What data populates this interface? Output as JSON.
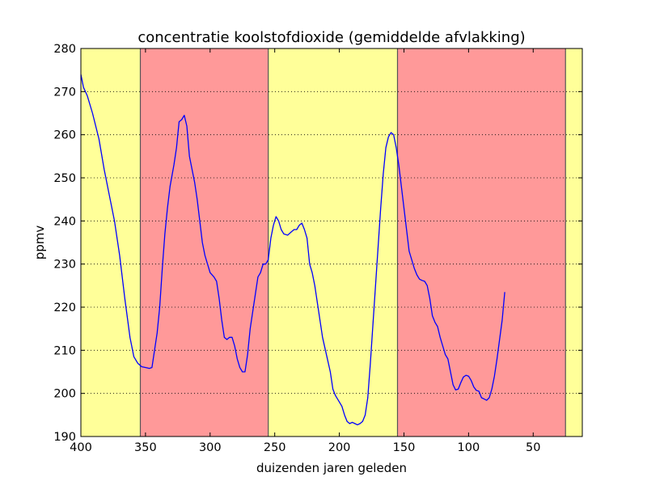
{
  "chart_data": {
    "type": "line",
    "title": "concentratie koolstofdioxide (gemiddelde afvlakking)",
    "xlabel": "duizenden jaren geleden",
    "ylabel": "ppmv",
    "xlim": [
      400,
      12
    ],
    "ylim": [
      190,
      280
    ],
    "x_reversed": true,
    "xticks": [
      400,
      350,
      300,
      250,
      200,
      150,
      100,
      50
    ],
    "yticks": [
      190,
      200,
      210,
      220,
      230,
      240,
      250,
      260,
      270,
      280
    ],
    "grid": "horizontal dotted",
    "colors": {
      "glacial": "#ff9999",
      "interglacial": "#ffff99",
      "line": "#0000ff"
    },
    "bands": [
      {
        "from": 400,
        "to": 354,
        "kind": "interglacial"
      },
      {
        "from": 354,
        "to": 255,
        "kind": "glacial"
      },
      {
        "from": 255,
        "to": 155,
        "kind": "interglacial"
      },
      {
        "from": 155,
        "to": 25,
        "kind": "glacial"
      },
      {
        "from": 25,
        "to": 12,
        "kind": "interglacial"
      }
    ],
    "band_boundaries": [
      354,
      255,
      155,
      25
    ],
    "series": [
      {
        "values": [
          [
            400,
            274
          ],
          [
            398,
            271
          ],
          [
            395,
            269
          ],
          [
            391,
            265
          ],
          [
            386,
            259
          ],
          [
            382,
            252
          ],
          [
            378,
            246
          ],
          [
            374,
            240
          ],
          [
            370,
            232
          ],
          [
            366,
            222
          ],
          [
            362,
            213
          ],
          [
            359,
            208.5
          ],
          [
            356,
            207
          ],
          [
            353,
            206.2
          ],
          [
            350,
            206
          ],
          [
            347,
            205.8
          ],
          [
            345,
            206
          ],
          [
            343,
            210
          ],
          [
            341,
            214
          ],
          [
            339,
            220
          ],
          [
            337,
            229
          ],
          [
            335,
            237
          ],
          [
            333,
            243
          ],
          [
            331,
            248
          ],
          [
            328,
            253
          ],
          [
            326,
            257
          ],
          [
            324,
            263
          ],
          [
            322,
            263.5
          ],
          [
            320,
            264.5
          ],
          [
            318,
            262
          ],
          [
            316,
            255
          ],
          [
            314,
            252
          ],
          [
            312,
            249
          ],
          [
            310,
            245
          ],
          [
            308,
            240
          ],
          [
            306,
            235
          ],
          [
            304,
            232
          ],
          [
            302,
            230
          ],
          [
            300,
            228
          ],
          [
            297,
            227
          ],
          [
            295,
            226
          ],
          [
            293,
            222
          ],
          [
            291,
            217
          ],
          [
            289,
            213
          ],
          [
            287,
            212.5
          ],
          [
            285,
            213
          ],
          [
            283,
            213
          ],
          [
            281,
            211
          ],
          [
            279,
            208
          ],
          [
            277,
            206
          ],
          [
            275,
            205
          ],
          [
            273,
            205
          ],
          [
            271,
            209
          ],
          [
            269,
            215
          ],
          [
            267,
            219
          ],
          [
            265,
            223
          ],
          [
            263,
            227
          ],
          [
            261,
            228
          ],
          [
            259,
            230
          ],
          [
            257,
            230
          ],
          [
            255,
            231
          ],
          [
            253,
            236
          ],
          [
            251,
            239
          ],
          [
            249,
            241
          ],
          [
            247,
            240
          ],
          [
            245,
            238
          ],
          [
            243,
            237
          ],
          [
            240,
            236.7
          ],
          [
            237,
            237.5
          ],
          [
            235,
            238
          ],
          [
            233,
            238
          ],
          [
            231,
            239
          ],
          [
            229,
            239.5
          ],
          [
            227,
            238
          ],
          [
            225,
            236
          ],
          [
            223,
            230
          ],
          [
            221,
            228
          ],
          [
            219,
            225
          ],
          [
            216,
            219
          ],
          [
            213,
            213
          ],
          [
            210,
            209
          ],
          [
            207,
            205
          ],
          [
            205,
            201
          ],
          [
            203,
            199.5
          ],
          [
            200,
            198
          ],
          [
            198,
            197
          ],
          [
            196,
            195
          ],
          [
            194,
            193.5
          ],
          [
            192,
            193
          ],
          [
            190,
            193.3
          ],
          [
            188,
            193
          ],
          [
            186,
            192.7
          ],
          [
            184,
            193
          ],
          [
            182,
            193.5
          ],
          [
            180,
            195
          ],
          [
            178,
            199
          ],
          [
            176,
            207
          ],
          [
            174,
            216
          ],
          [
            172,
            225
          ],
          [
            170,
            234
          ],
          [
            168,
            243
          ],
          [
            166,
            251
          ],
          [
            164,
            257
          ],
          [
            162,
            259.5
          ],
          [
            160,
            260.5
          ],
          [
            158,
            260
          ],
          [
            156,
            257
          ],
          [
            154,
            253
          ],
          [
            152,
            248
          ],
          [
            150,
            243
          ],
          [
            148,
            238
          ],
          [
            146,
            233
          ],
          [
            144,
            231
          ],
          [
            142,
            229
          ],
          [
            140,
            227.5
          ],
          [
            138,
            226.5
          ],
          [
            136,
            226.2
          ],
          [
            134,
            226
          ],
          [
            132,
            225
          ],
          [
            130,
            222
          ],
          [
            128,
            218
          ],
          [
            126,
            216.5
          ],
          [
            124,
            215.5
          ],
          [
            122,
            213
          ],
          [
            120,
            211
          ],
          [
            118,
            209
          ],
          [
            116,
            208
          ],
          [
            114,
            205
          ],
          [
            112,
            202
          ],
          [
            110,
            200.8
          ],
          [
            108,
            201
          ],
          [
            106,
            202.5
          ],
          [
            104,
            203.8
          ],
          [
            102,
            204.2
          ],
          [
            100,
            204
          ],
          [
            98,
            203
          ],
          [
            96,
            201.5
          ],
          [
            94,
            200.7
          ],
          [
            92,
            200.5
          ],
          [
            90,
            199
          ],
          [
            88,
            198.7
          ],
          [
            86,
            198.4
          ],
          [
            84,
            199
          ],
          [
            82,
            201
          ],
          [
            80,
            204
          ],
          [
            78,
            208
          ],
          [
            76,
            212.5
          ],
          [
            74,
            217
          ],
          [
            72,
            223.5
          ]
        ]
      }
    ]
  }
}
